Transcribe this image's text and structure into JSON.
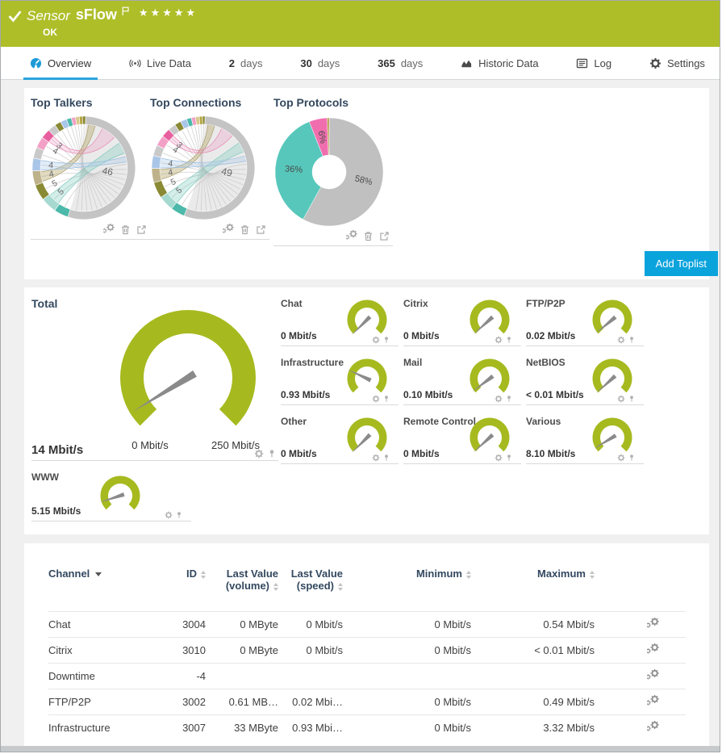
{
  "colors": {
    "header_green": "#aebe29",
    "gauge_green": "#a6ba1f",
    "accent_blue": "#0ba3dc",
    "tab_underline": "#2aa5dd",
    "title_navy": "#33485f"
  },
  "header": {
    "type_label": "Sensor",
    "name": "sFlow",
    "stars": "★★★★★",
    "status": "OK"
  },
  "tabs": [
    {
      "label": "Overview",
      "icon": "gauge",
      "active": true
    },
    {
      "label": "Live Data",
      "icon": "broadcast"
    },
    {
      "value": "2",
      "label": "days"
    },
    {
      "value": "30",
      "label": "days"
    },
    {
      "value": "365",
      "label": "days"
    },
    {
      "label": "Historic Data",
      "icon": "historic"
    },
    {
      "label": "Log",
      "icon": "log"
    },
    {
      "label": "Settings",
      "icon": "gear"
    }
  ],
  "toplists": {
    "add_button": "Add Toplist",
    "panels": [
      {
        "title": "Top Talkers"
      },
      {
        "title": "Top Connections"
      },
      {
        "title": "Top Protocols"
      }
    ]
  },
  "gauges": {
    "unit": "Mbit/s",
    "total": {
      "name": "Total",
      "value": "14 Mbit/s",
      "min_label": "0 Mbit/s",
      "max_label": "250 Mbit/s",
      "fraction": 0.05
    },
    "channels": [
      {
        "name": "Chat",
        "value": "0 Mbit/s",
        "fraction": 0.0
      },
      {
        "name": "Citrix",
        "value": "0 Mbit/s",
        "fraction": 0.01
      },
      {
        "name": "FTP/P2P",
        "value": "0.02 Mbit/s",
        "fraction": 0.02
      },
      {
        "name": "Infrastructure",
        "value": "0.93 Mbit/s",
        "fraction": 0.26
      },
      {
        "name": "Mail",
        "value": "0.10 Mbit/s",
        "fraction": 0.03
      },
      {
        "name": "NetBIOS",
        "value": "< 0.01 Mbit/s",
        "fraction": 0.01
      },
      {
        "name": "Other",
        "value": "0 Mbit/s",
        "fraction": 0.0
      },
      {
        "name": "Remote Control",
        "value": "0 Mbit/s",
        "fraction": 0.01
      },
      {
        "name": "Various",
        "value": "8.10 Mbit/s",
        "fraction": 0.05
      }
    ],
    "www": {
      "name": "WWW",
      "value": "5.15 Mbit/s",
      "fraction": 0.1
    }
  },
  "table": {
    "columns": [
      {
        "label": "Channel",
        "sort": "active",
        "align": "left"
      },
      {
        "label": "ID",
        "sort": "both",
        "align": "right"
      },
      {
        "label": "Last Value (volume)",
        "lines": [
          "Last Value",
          "(volume)"
        ],
        "sort": "both",
        "align": "right"
      },
      {
        "label": "Last Value (speed)",
        "lines": [
          "Last Value",
          "(speed)"
        ],
        "sort": "both",
        "align": "right"
      },
      {
        "label": "Minimum",
        "sort": "both",
        "align": "right"
      },
      {
        "label": "Maximum",
        "sort": "both",
        "align": "right"
      }
    ],
    "rows": [
      {
        "cells": [
          "Chat",
          "3004",
          "0 MByte",
          "0 Mbit/s",
          "0 Mbit/s",
          "0.54 Mbit/s"
        ]
      },
      {
        "cells": [
          "Citrix",
          "3010",
          "0 MByte",
          "0 Mbit/s",
          "0 Mbit/s",
          "< 0.01 Mbit/s"
        ]
      },
      {
        "cells": [
          "Downtime",
          "-4",
          "",
          "",
          "",
          ""
        ]
      },
      {
        "cells": [
          "FTP/P2P",
          "3002",
          "0.61 MB…",
          "0.02 Mbi…",
          "0 Mbit/s",
          "0.49 Mbit/s"
        ]
      },
      {
        "cells": [
          "Infrastructure",
          "3007",
          "33 MByte",
          "0.93 Mbi…",
          "0 Mbit/s",
          "3.32 Mbit/s"
        ]
      }
    ]
  },
  "chart_data": [
    {
      "type": "chord",
      "title": "Top Talkers",
      "dominant_label": "46",
      "segments": [
        {
          "v": 0.545,
          "c": "#c4c4c4",
          "l": "46"
        },
        {
          "v": 0.045,
          "c": "#4cb9aa"
        },
        {
          "v": 0.05,
          "c": "#a6d9cf",
          "l": "5"
        },
        {
          "v": 0.05,
          "c": "#8a8a35",
          "l": "5"
        },
        {
          "v": 0.045,
          "c": "#beb28a",
          "l": "4"
        },
        {
          "v": 0.04,
          "c": "#a9c6e8",
          "l": "4"
        },
        {
          "v": 0.035,
          "c": "#c9c9c9"
        },
        {
          "v": 0.035,
          "c": "#f2a0c6",
          "l": "4"
        },
        {
          "v": 0.03,
          "c": "#e85f9f",
          "l": "3"
        },
        {
          "v": 0.025,
          "c": "#c9c9c9"
        },
        {
          "v": 0.02,
          "c": "#8a8a35"
        },
        {
          "v": 0.02,
          "c": "#a9c6e8"
        },
        {
          "v": 0.015,
          "c": "#4cb9aa"
        },
        {
          "v": 0.013,
          "c": "#f2a0c6"
        },
        {
          "v": 0.012,
          "c": "#d9c98b"
        },
        {
          "v": 0.01,
          "c": "#b5a642"
        },
        {
          "v": 0.01,
          "c": "#8a8a35"
        }
      ],
      "ribbons": [
        {
          "a": [
            252,
            265
          ],
          "b": [
            6,
            15
          ],
          "f": "rgba(186,172,118,0.45)",
          "s": "#ab9d6a"
        },
        {
          "a": [
            307,
            316
          ],
          "b": [
            25,
            45
          ],
          "f": "rgba(236,110,168,0.20)",
          "s": "#e887b4"
        },
        {
          "a": [
            216,
            231
          ],
          "b": [
            55,
            70
          ],
          "f": "rgba(100,195,180,0.28)",
          "s": "#7cc8bb"
        },
        {
          "a": [
            267,
            280
          ],
          "b": [
            75,
            82
          ],
          "f": "rgba(168,200,232,0.35)",
          "s": "#9bbede"
        }
      ]
    },
    {
      "type": "chord",
      "title": "Top Connections",
      "dominant_label": "49",
      "segments": [
        {
          "v": 0.555,
          "c": "#c4c4c4",
          "l": "49"
        },
        {
          "v": 0.045,
          "c": "#4cb9aa"
        },
        {
          "v": 0.048,
          "c": "#a6d9cf",
          "l": "5"
        },
        {
          "v": 0.05,
          "c": "#8a8a35",
          "l": "5"
        },
        {
          "v": 0.045,
          "c": "#beb28a",
          "l": "4"
        },
        {
          "v": 0.04,
          "c": "#a9c6e8",
          "l": "4"
        },
        {
          "v": 0.034,
          "c": "#c9c9c9"
        },
        {
          "v": 0.033,
          "c": "#f2a0c6",
          "l": "4"
        },
        {
          "v": 0.028,
          "c": "#e85f9f",
          "l": "3"
        },
        {
          "v": 0.024,
          "c": "#c9c9c9"
        },
        {
          "v": 0.02,
          "c": "#8a8a35"
        },
        {
          "v": 0.02,
          "c": "#a9c6e8"
        },
        {
          "v": 0.015,
          "c": "#4cb9aa"
        },
        {
          "v": 0.013,
          "c": "#f2a0c6"
        },
        {
          "v": 0.012,
          "c": "#d9c98b"
        },
        {
          "v": 0.01,
          "c": "#b5a642"
        },
        {
          "v": 0.008,
          "c": "#8a8a35"
        }
      ],
      "ribbons": [
        {
          "a": [
            255,
            268
          ],
          "b": [
            6,
            15
          ],
          "f": "rgba(186,172,118,0.45)",
          "s": "#ab9d6a"
        },
        {
          "a": [
            309,
            317
          ],
          "b": [
            25,
            42
          ],
          "f": "rgba(236,110,168,0.20)",
          "s": "#e887b4"
        },
        {
          "a": [
            217,
            234
          ],
          "b": [
            55,
            68
          ],
          "f": "rgba(100,195,180,0.28)",
          "s": "#7cc8bb"
        },
        {
          "a": [
            270,
            283
          ],
          "b": [
            74,
            81
          ],
          "f": "rgba(168,200,232,0.35)",
          "s": "#9bbede"
        }
      ]
    },
    {
      "type": "pie",
      "title": "Top Protocols",
      "slices": [
        {
          "value": 58,
          "color": "#c0c0c0",
          "label": "58%"
        },
        {
          "value": 36,
          "color": "#57c7bb",
          "label": "36%"
        },
        {
          "value": 5.4,
          "color": "#f06eae",
          "label": "6%"
        },
        {
          "value": 0.6,
          "color": "#b3983f",
          "label": ""
        }
      ]
    },
    {
      "type": "gauge",
      "title": "Total",
      "unit": "Mbit/s",
      "min": 0,
      "max": 250,
      "value": 14,
      "channel_values": [
        [
          "Chat",
          0
        ],
        [
          "Citrix",
          0
        ],
        [
          "FTP/P2P",
          0.02
        ],
        [
          "Infrastructure",
          0.93
        ],
        [
          "Mail",
          0.1
        ],
        [
          "NetBIOS",
          "<0.01"
        ],
        [
          "Other",
          0
        ],
        [
          "Remote Control",
          0
        ],
        [
          "Various",
          8.1
        ],
        [
          "WWW",
          5.15
        ]
      ]
    }
  ]
}
